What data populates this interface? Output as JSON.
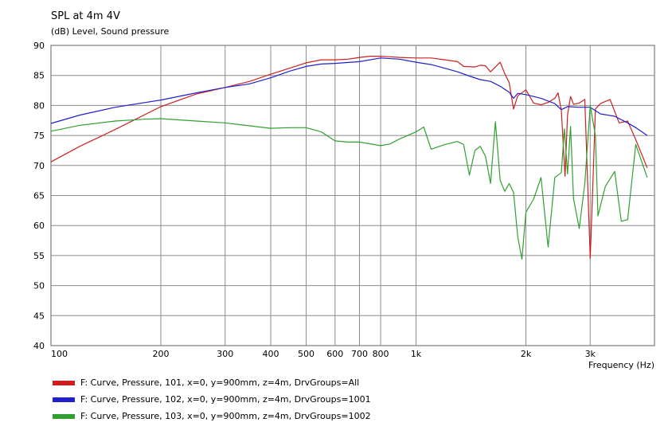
{
  "chart_data": {
    "type": "line",
    "title": "SPL at 4m 4V",
    "ylabel": "(dB)  Level, Sound pressure",
    "xlabel": "Frequency  (Hz)",
    "xscale": "log",
    "xlim": [
      100,
      4500
    ],
    "ylim": [
      40,
      90
    ],
    "grid": true,
    "legend_position": "bottom-left",
    "x_ticks": [
      {
        "value": 100,
        "label": "100"
      },
      {
        "value": 200,
        "label": "200"
      },
      {
        "value": 300,
        "label": "300"
      },
      {
        "value": 400,
        "label": "400"
      },
      {
        "value": 500,
        "label": "500"
      },
      {
        "value": 600,
        "label": "600"
      },
      {
        "value": 700,
        "label": "700"
      },
      {
        "value": 800,
        "label": "800"
      },
      {
        "value": 1000,
        "label": "1k"
      },
      {
        "value": 2000,
        "label": "2k"
      },
      {
        "value": 3000,
        "label": "3k"
      }
    ],
    "y_ticks": [
      {
        "value": 40,
        "label": "40"
      },
      {
        "value": 45,
        "label": "45"
      },
      {
        "value": 50,
        "label": "50"
      },
      {
        "value": 55,
        "label": "55"
      },
      {
        "value": 60,
        "label": "60"
      },
      {
        "value": 65,
        "label": "65"
      },
      {
        "value": 70,
        "label": "70"
      },
      {
        "value": 75,
        "label": "75"
      },
      {
        "value": 80,
        "label": "80"
      },
      {
        "value": 85,
        "label": "85"
      },
      {
        "value": 90,
        "label": "90"
      }
    ],
    "series": [
      {
        "name": "F: Curve, Pressure, 101, x=0, y=900mm, z=4m, DrvGroups=All",
        "color": "#cc2020",
        "points": [
          [
            100,
            70.6
          ],
          [
            120,
            73.2
          ],
          [
            150,
            76.0
          ],
          [
            200,
            79.8
          ],
          [
            250,
            81.9
          ],
          [
            300,
            83.0
          ],
          [
            350,
            84.0
          ],
          [
            400,
            85.2
          ],
          [
            450,
            86.2
          ],
          [
            500,
            87.1
          ],
          [
            550,
            87.6
          ],
          [
            600,
            87.6
          ],
          [
            650,
            87.7
          ],
          [
            700,
            88.0
          ],
          [
            750,
            88.2
          ],
          [
            800,
            88.2
          ],
          [
            850,
            88.1
          ],
          [
            900,
            88.0
          ],
          [
            1000,
            87.9
          ],
          [
            1100,
            87.9
          ],
          [
            1200,
            87.6
          ],
          [
            1300,
            87.3
          ],
          [
            1350,
            86.5
          ],
          [
            1450,
            86.4
          ],
          [
            1500,
            86.7
          ],
          [
            1550,
            86.6
          ],
          [
            1600,
            85.6
          ],
          [
            1650,
            86.4
          ],
          [
            1700,
            87.2
          ],
          [
            1750,
            85.3
          ],
          [
            1800,
            83.8
          ],
          [
            1850,
            79.4
          ],
          [
            1900,
            81.6
          ],
          [
            2000,
            82.6
          ],
          [
            2100,
            80.4
          ],
          [
            2200,
            80.1
          ],
          [
            2300,
            80.5
          ],
          [
            2400,
            81.2
          ],
          [
            2450,
            82.1
          ],
          [
            2500,
            79.2
          ],
          [
            2560,
            68.2
          ],
          [
            2600,
            78.4
          ],
          [
            2650,
            81.5
          ],
          [
            2700,
            80.2
          ],
          [
            2800,
            80.4
          ],
          [
            2900,
            81.0
          ],
          [
            3000,
            54.5
          ],
          [
            3060,
            69.1
          ],
          [
            3100,
            79.4
          ],
          [
            3200,
            80.3
          ],
          [
            3400,
            81.0
          ],
          [
            3600,
            77.1
          ],
          [
            3800,
            77.4
          ],
          [
            4000,
            74.3
          ],
          [
            4300,
            69.6
          ]
        ]
      },
      {
        "name": "F: Curve, Pressure, 102, x=0, y=900mm, z=4m, DrvGroups=1001",
        "color": "#2020cc",
        "points": [
          [
            100,
            77.0
          ],
          [
            120,
            78.4
          ],
          [
            150,
            79.7
          ],
          [
            200,
            80.9
          ],
          [
            250,
            82.1
          ],
          [
            300,
            83.0
          ],
          [
            350,
            83.6
          ],
          [
            400,
            84.6
          ],
          [
            450,
            85.7
          ],
          [
            500,
            86.5
          ],
          [
            550,
            86.9
          ],
          [
            600,
            87.0
          ],
          [
            700,
            87.3
          ],
          [
            800,
            87.9
          ],
          [
            900,
            87.7
          ],
          [
            1000,
            87.2
          ],
          [
            1100,
            86.8
          ],
          [
            1200,
            86.2
          ],
          [
            1300,
            85.6
          ],
          [
            1400,
            84.9
          ],
          [
            1500,
            84.3
          ],
          [
            1600,
            84.0
          ],
          [
            1700,
            83.2
          ],
          [
            1800,
            82.2
          ],
          [
            1850,
            81.2
          ],
          [
            1900,
            82.0
          ],
          [
            2000,
            81.8
          ],
          [
            2200,
            81.2
          ],
          [
            2400,
            80.3
          ],
          [
            2500,
            79.3
          ],
          [
            2600,
            79.8
          ],
          [
            2800,
            79.7
          ],
          [
            3000,
            79.7
          ],
          [
            3200,
            78.6
          ],
          [
            3500,
            78.2
          ],
          [
            3800,
            77.1
          ],
          [
            4000,
            76.3
          ],
          [
            4300,
            75.0
          ]
        ]
      },
      {
        "name": "F: Curve, Pressure, 103, x=0, y=900mm, z=4m, DrvGroups=1002",
        "color": "#30a030",
        "points": [
          [
            100,
            75.7
          ],
          [
            120,
            76.7
          ],
          [
            150,
            77.4
          ],
          [
            180,
            77.7
          ],
          [
            200,
            77.8
          ],
          [
            250,
            77.4
          ],
          [
            300,
            77.1
          ],
          [
            350,
            76.6
          ],
          [
            400,
            76.2
          ],
          [
            450,
            76.3
          ],
          [
            500,
            76.3
          ],
          [
            550,
            75.6
          ],
          [
            600,
            74.1
          ],
          [
            650,
            73.9
          ],
          [
            700,
            73.9
          ],
          [
            800,
            73.3
          ],
          [
            850,
            73.6
          ],
          [
            900,
            74.4
          ],
          [
            1000,
            75.6
          ],
          [
            1050,
            76.4
          ],
          [
            1100,
            72.7
          ],
          [
            1200,
            73.5
          ],
          [
            1300,
            74.0
          ],
          [
            1350,
            73.5
          ],
          [
            1400,
            68.4
          ],
          [
            1450,
            72.5
          ],
          [
            1500,
            73.2
          ],
          [
            1550,
            71.5
          ],
          [
            1600,
            67.0
          ],
          [
            1650,
            77.3
          ],
          [
            1700,
            67.5
          ],
          [
            1750,
            65.7
          ],
          [
            1800,
            67.0
          ],
          [
            1850,
            65.5
          ],
          [
            1900,
            58.1
          ],
          [
            1950,
            54.4
          ],
          [
            2000,
            62.2
          ],
          [
            2100,
            64.4
          ],
          [
            2200,
            68.0
          ],
          [
            2300,
            56.4
          ],
          [
            2400,
            68.0
          ],
          [
            2500,
            68.8
          ],
          [
            2550,
            76.1
          ],
          [
            2600,
            68.6
          ],
          [
            2650,
            76.5
          ],
          [
            2700,
            64.5
          ],
          [
            2800,
            59.5
          ],
          [
            2900,
            67.0
          ],
          [
            3000,
            80.0
          ],
          [
            3100,
            75.0
          ],
          [
            3150,
            61.6
          ],
          [
            3300,
            66.5
          ],
          [
            3500,
            69.0
          ],
          [
            3650,
            60.7
          ],
          [
            3800,
            61.0
          ],
          [
            4000,
            73.5
          ],
          [
            4300,
            68.0
          ]
        ]
      }
    ]
  }
}
